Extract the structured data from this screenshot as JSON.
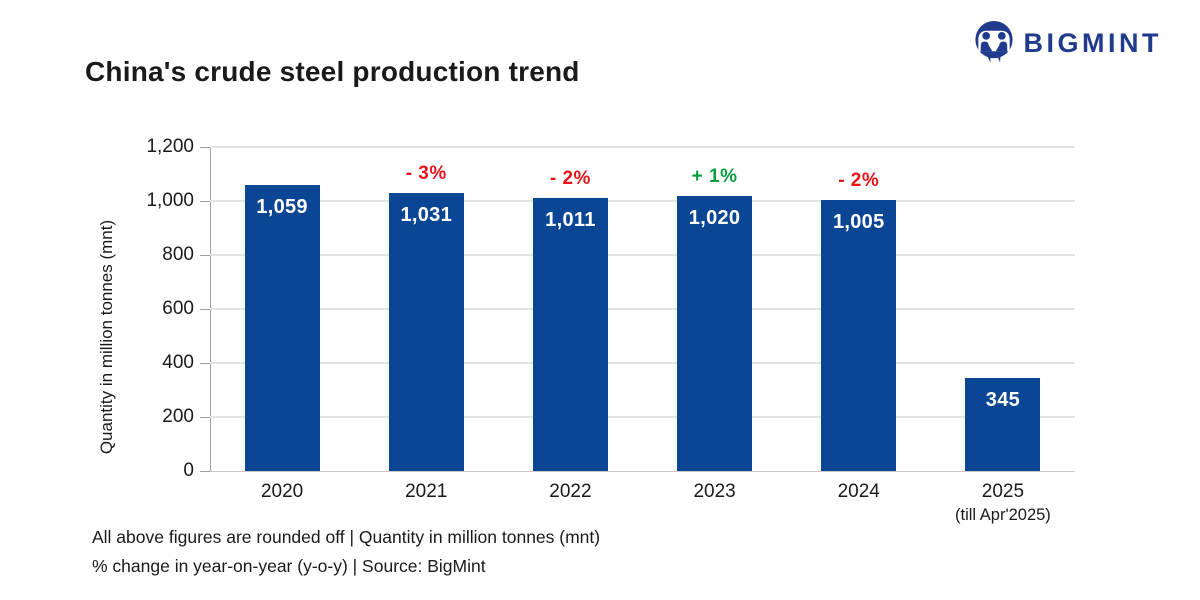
{
  "header": {
    "title": "China's crude steel production trend",
    "logo_text": "BIGMINT"
  },
  "chart_data": {
    "type": "bar",
    "title": "China's crude steel production trend",
    "categories": [
      "2020",
      "2021",
      "2022",
      "2023",
      "2024",
      "2025"
    ],
    "category_sublabels": [
      "",
      "",
      "",
      "",
      "",
      "(till Apr'2025)"
    ],
    "values": [
      1059,
      1031,
      1011,
      1020,
      1005,
      345
    ],
    "value_labels": [
      "1,059",
      "1,031",
      "1,011",
      "1,020",
      "1,005",
      "345"
    ],
    "yoy_changes": [
      null,
      "- 3%",
      "- 2%",
      "+ 1%",
      "- 2%",
      null
    ],
    "yoy_directions": [
      null,
      "down",
      "down",
      "up",
      "down",
      null
    ],
    "xlabel": "",
    "ylabel": "Quantity in million tonnes (mnt)",
    "ylim": [
      0,
      1200
    ],
    "ytick_interval": 200,
    "ytick_labels": [
      "0",
      "200",
      "400",
      "600",
      "800",
      "1,000",
      "1,200"
    ],
    "grid": true,
    "legend": false
  },
  "footer": {
    "line1": "All above figures are rounded off | Quantity in million tonnes (mnt)",
    "line2": "% change in year-on-year (y-o-y) | Source: BigMint"
  },
  "colors": {
    "bar_blue": "#0b4694",
    "bar_label_white": "#ffffff",
    "logo_navy": "#203a8d",
    "negative_red": "#e8141b",
    "positive_green": "#089e3c",
    "text": "#1a1a1a",
    "gridline": "#e4e4e4",
    "axis_gray": "#a0a0a0"
  }
}
